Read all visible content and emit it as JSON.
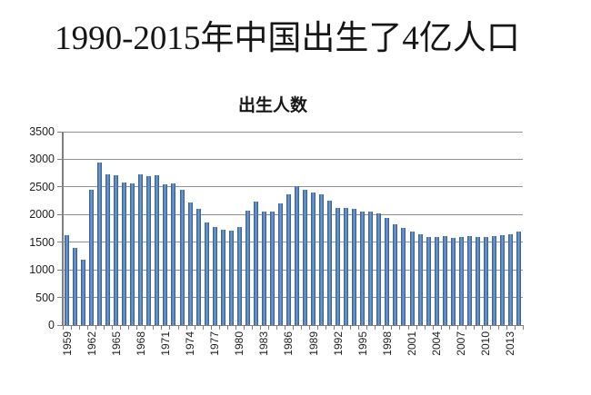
{
  "title": "1990-2015年中国出生了4亿人口",
  "chart_data": {
    "type": "bar",
    "title": "出生人数",
    "xlabel": "",
    "ylabel": "",
    "grid": true,
    "legend": false,
    "ylim": [
      0,
      3500
    ],
    "ytick_step": 500,
    "xtick_label_every": 3,
    "x": [
      1959,
      1960,
      1961,
      1962,
      1963,
      1964,
      1965,
      1966,
      1967,
      1968,
      1969,
      1970,
      1971,
      1972,
      1973,
      1974,
      1975,
      1976,
      1977,
      1978,
      1979,
      1980,
      1981,
      1982,
      1983,
      1984,
      1985,
      1986,
      1987,
      1988,
      1989,
      1990,
      1991,
      1992,
      1993,
      1994,
      1995,
      1996,
      1997,
      1998,
      1999,
      2000,
      2001,
      2002,
      2003,
      2004,
      2005,
      2006,
      2007,
      2008,
      2009,
      2010,
      2011,
      2012,
      2013,
      2014
    ],
    "values": [
      1635,
      1402,
      1187,
      2451,
      2934,
      2729,
      2704,
      2577,
      2563,
      2731,
      2690,
      2710,
      2551,
      2566,
      2447,
      2226,
      2102,
      1849,
      1783,
      1733,
      1715,
      1776,
      2064,
      2230,
      2052,
      2050,
      2196,
      2374,
      2508,
      2445,
      2396,
      2374,
      2250,
      2113,
      2120,
      2098,
      2052,
      2057,
      2028,
      1934,
      1827,
      1765,
      1696,
      1641,
      1594,
      1588,
      1612,
      1581,
      1591,
      1604,
      1587,
      1588,
      1604,
      1635,
      1640,
      1687
    ],
    "colors": {
      "bar_fill": "#4f81bd",
      "bar_edge": "#35598c",
      "bar_highlight": "#7da3d4",
      "gridline": "#919191",
      "axis": "#7f7f7f",
      "tick_label": "#1f1f1f",
      "title_text": "#161616"
    }
  }
}
